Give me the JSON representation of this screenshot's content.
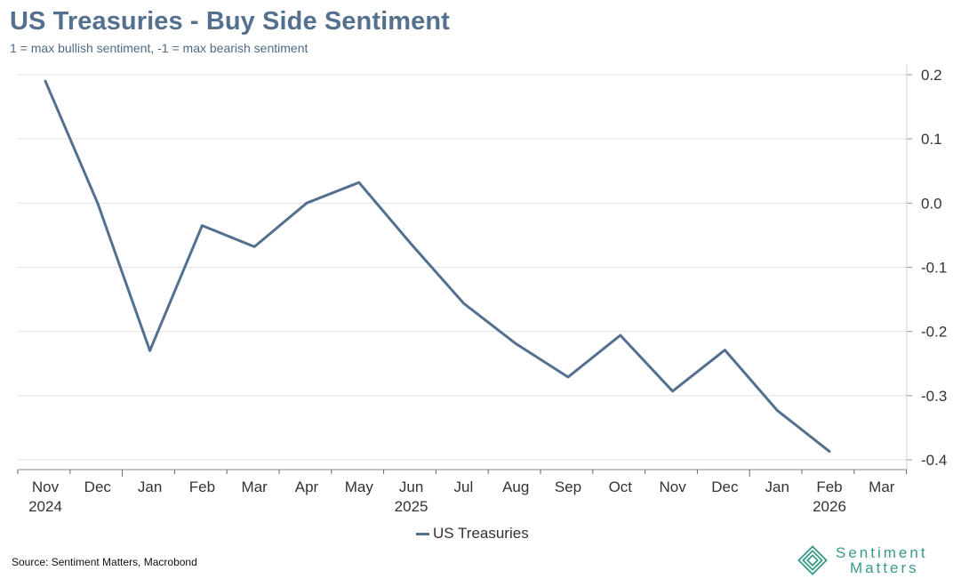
{
  "title": "US Treasuries - Buy Side Sentiment",
  "subtitle": "1 = max bullish sentiment, -1 = max bearish sentiment",
  "source": "Source: Sentiment Matters, Macrobond",
  "logo": {
    "line1": "Sentiment",
    "line2": "Matters",
    "icon": "concentric-diamond-icon"
  },
  "colors": {
    "title": "#54708f",
    "series": "#54708f",
    "grid": "#e2e2e2",
    "logo": "#3a9a8a"
  },
  "chart_data": {
    "type": "line",
    "title": "US Treasuries - Buy Side Sentiment",
    "subtitle": "1 = max bullish sentiment, -1 = max bearish sentiment",
    "x_ticks": [
      {
        "month": "Nov",
        "year": "2024"
      },
      {
        "month": "Dec",
        "year": ""
      },
      {
        "month": "Jan",
        "year": ""
      },
      {
        "month": "Feb",
        "year": ""
      },
      {
        "month": "Mar",
        "year": ""
      },
      {
        "month": "Apr",
        "year": ""
      },
      {
        "month": "May",
        "year": ""
      },
      {
        "month": "Jun",
        "year": "2025"
      },
      {
        "month": "Jul",
        "year": ""
      },
      {
        "month": "Aug",
        "year": ""
      },
      {
        "month": "Sep",
        "year": ""
      },
      {
        "month": "Oct",
        "year": ""
      },
      {
        "month": "Nov",
        "year": ""
      },
      {
        "month": "Dec",
        "year": ""
      },
      {
        "month": "Jan",
        "year": ""
      },
      {
        "month": "Feb",
        "year": "2026"
      },
      {
        "month": "Mar",
        "year": ""
      }
    ],
    "ylim": [
      -0.4,
      0.2
    ],
    "yticks": [
      "0.2",
      "0.1",
      "0.0",
      "-0.1",
      "-0.2",
      "-0.3",
      "-0.4"
    ],
    "y_axis_position": "right",
    "grid": true,
    "legend_position": "bottom-center",
    "series": [
      {
        "name": "US Treasuries",
        "values": [
          0.19,
          0.0,
          -0.23,
          -0.035,
          -0.068,
          0.0,
          0.032,
          -0.064,
          -0.156,
          -0.219,
          -0.271,
          -0.206,
          -0.293,
          -0.229,
          -0.323,
          -0.387
        ]
      }
    ]
  }
}
